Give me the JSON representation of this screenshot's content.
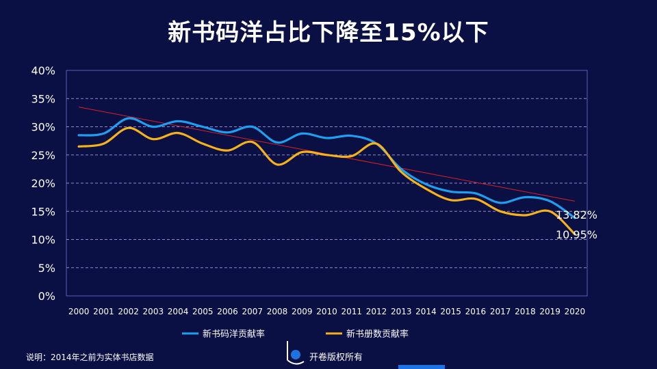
{
  "chart_data": {
    "type": "line",
    "title": "新书码洋占比下降至15%以下",
    "x": [
      "2000",
      "2001",
      "2002",
      "2003",
      "2004",
      "2005",
      "2006",
      "2007",
      "2008",
      "2009",
      "2010",
      "2011",
      "2012",
      "2013",
      "2014",
      "2015",
      "2016",
      "2017",
      "2018",
      "2019",
      "2020"
    ],
    "y_ticks": [
      "0%",
      "5%",
      "10%",
      "15%",
      "20%",
      "25%",
      "30%",
      "35%",
      "40%"
    ],
    "ylim": [
      0,
      40
    ],
    "grid": true,
    "legend_position": "bottom",
    "series": [
      {
        "name": "新书码洋贡献率",
        "color": "#1ea0f0",
        "values": [
          28.5,
          28.8,
          31.5,
          30.0,
          31.0,
          30.0,
          29.0,
          30.0,
          27.2,
          28.8,
          28.0,
          28.4,
          27.0,
          22.5,
          19.8,
          18.5,
          18.2,
          16.5,
          17.5,
          16.8,
          13.82
        ]
      },
      {
        "name": "新书册数贡献率",
        "color": "#f6b21a",
        "values": [
          26.5,
          27.0,
          29.8,
          27.8,
          28.9,
          27.0,
          25.8,
          27.3,
          23.3,
          25.5,
          25.0,
          24.8,
          27.0,
          22.0,
          19.0,
          17.0,
          17.2,
          15.0,
          14.3,
          15.0,
          10.95
        ]
      }
    ],
    "trendline": {
      "color": "#e02020",
      "start": 33.5,
      "end": 16.8
    },
    "annotations": [
      {
        "series": 0,
        "label": "13.82%"
      },
      {
        "series": 1,
        "label": "10.95%"
      }
    ]
  },
  "footnote": "说明：2014年之前为实体书店数据",
  "copyright": "开卷版权所有"
}
